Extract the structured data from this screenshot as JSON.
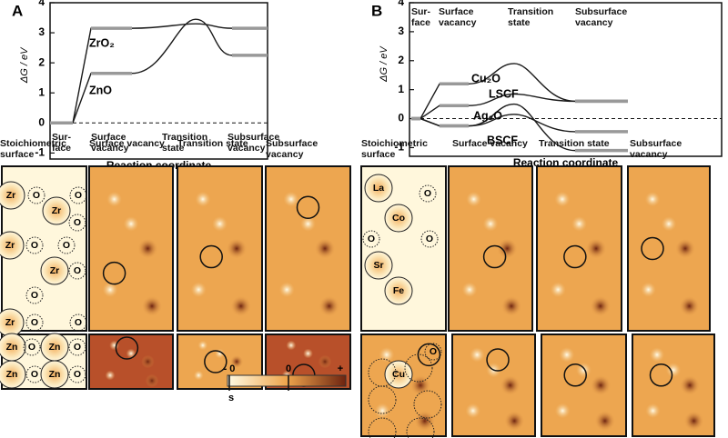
{
  "chart_data": [
    {
      "type": "line",
      "panel_label": "A",
      "ylabel": "ΔG / eV",
      "xlabel": "Reaction coordinate",
      "categories": [
        "Sur-face",
        "Surface vacancy",
        "Transition state",
        "Subsurface vacancy"
      ],
      "category_label_position": "bottom",
      "ylim": [
        -1.2,
        4
      ],
      "yticks": [
        -1,
        0,
        1,
        2,
        3,
        4
      ],
      "series": [
        {
          "name": "ZrO₂",
          "color": "#1a1a1a",
          "values": [
            0,
            3.15,
            3.3,
            3.15
          ]
        },
        {
          "name": "ZnO",
          "color": "#1a1a1a",
          "values": [
            0,
            1.65,
            3.45,
            2.25
          ]
        }
      ]
    },
    {
      "type": "line",
      "panel_label": "B",
      "ylabel": "ΔG / eV",
      "xlabel": "Reaction coordinate",
      "categories": [
        "Sur-face",
        "Surface vacancy",
        "Transition state",
        "Subsurface vacancy"
      ],
      "category_label_position": "top",
      "ylim": [
        -1.3,
        4
      ],
      "yticks": [
        -1,
        0,
        1,
        2,
        3,
        4
      ],
      "series": [
        {
          "name": "Cu₂O",
          "color": "#1a1a1a",
          "values": [
            0,
            1.2,
            1.9,
            0.6
          ]
        },
        {
          "name": "LSCF",
          "color": "#1a1a1a",
          "values": [
            0,
            0.45,
            0.85,
            0.6
          ]
        },
        {
          "name": "Ag₂O",
          "color": "#1a1a1a",
          "values": [
            0,
            -0.25,
            0.5,
            -1.1
          ]
        },
        {
          "name": "BSCF",
          "color": "#1a1a1a",
          "values": [
            0,
            -0.25,
            0.15,
            -0.45
          ]
        }
      ]
    }
  ],
  "panels": {
    "left_headers": [
      "Stoichiometric surface",
      "Surface vacancy",
      "Transition state",
      "Subsurface vacancy"
    ],
    "right_headers": [
      "Stoichiometric surface",
      "Surface vacancy",
      "Transition state",
      "Subsurface vacancy"
    ],
    "zro2_atoms": [
      "Zr",
      "O",
      "O",
      "Zr",
      "O",
      "Zr",
      "O",
      "O",
      "O",
      "Zr",
      "O",
      "Zr",
      "O",
      "O"
    ],
    "zno_atoms": [
      "Zn",
      "O",
      "Zn",
      "O",
      "Zn",
      "O",
      "Zn",
      "O"
    ],
    "lscf_atoms": [
      "La",
      "O",
      "Co",
      "O",
      "O",
      "Sr",
      "Fe"
    ],
    "cu2o_atoms": [
      "O",
      "Cu"
    ]
  },
  "colorbar": {
    "labels": [
      "- 0",
      "0",
      "+"
    ],
    "unit": "s"
  }
}
